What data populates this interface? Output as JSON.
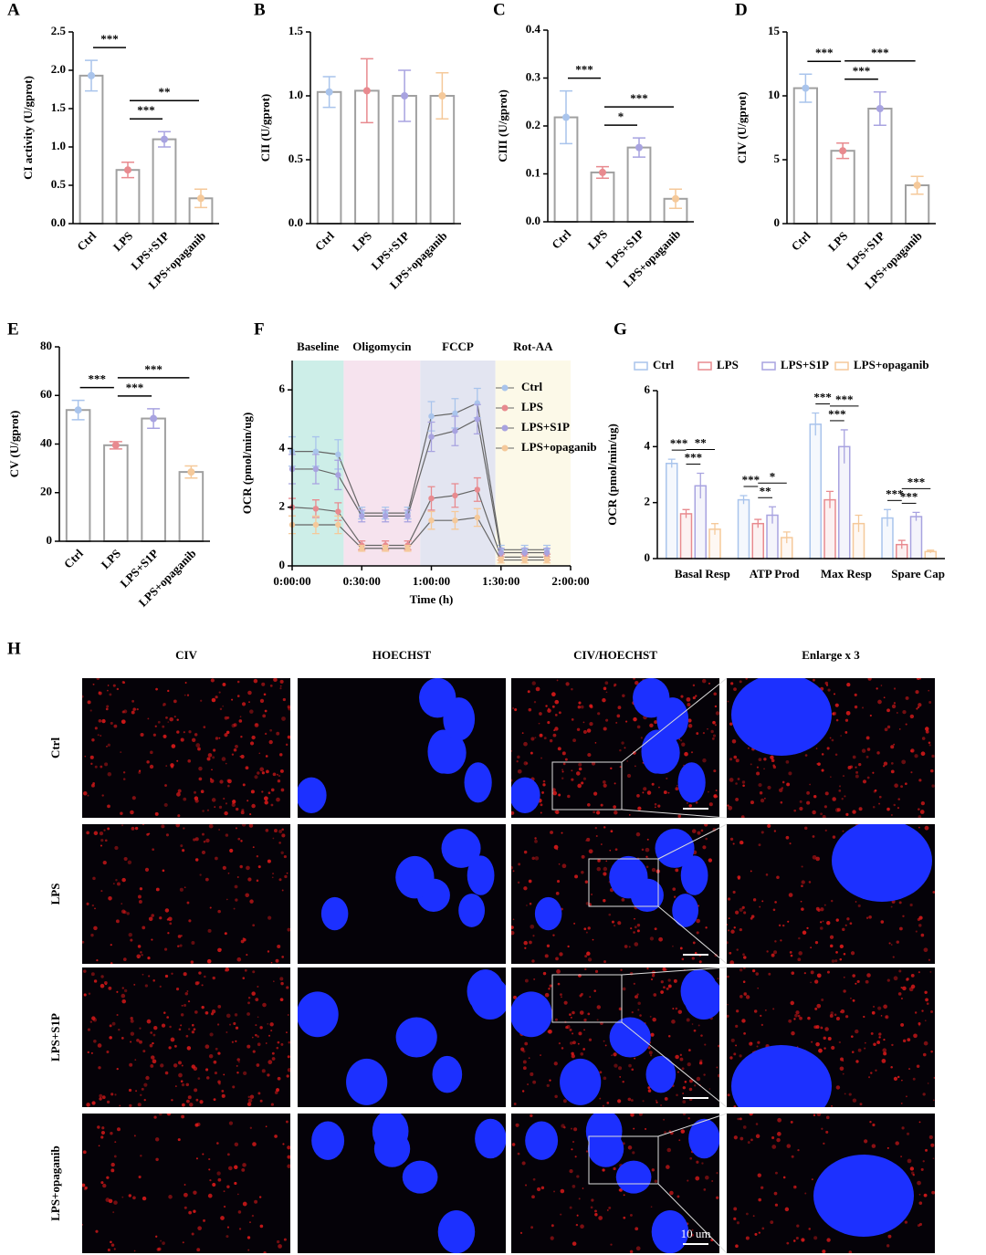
{
  "chart_data": [
    {
      "panel": "A",
      "type": "bar",
      "ylabel": "CI activity (U/gprot)",
      "categories": [
        "Ctrl",
        "LPS",
        "LPS+S1P",
        "LPS+opaganib"
      ],
      "values": [
        1.93,
        0.7,
        1.1,
        0.33
      ],
      "errors": [
        0.2,
        0.1,
        0.1,
        0.12
      ],
      "colors": [
        "#a9c4ec",
        "#e88a8f",
        "#a8a3e0",
        "#f5c99a"
      ],
      "ylim": [
        0,
        2.5
      ],
      "yticks": [
        {
          "value": 0,
          "label": "0.0"
        },
        0.5,
        {
          "value": 1,
          "label": "1.0"
        },
        1.5,
        {
          "value": 2,
          "label": "2.0"
        },
        2.5
      ],
      "annotations": [
        {
          "label": "***",
          "between": [
            "Ctrl",
            "LPS"
          ]
        },
        {
          "label": "***",
          "between": [
            "LPS",
            "LPS+S1P"
          ]
        },
        {
          "label": "**",
          "between": [
            "LPS",
            "LPS+opaganib"
          ]
        }
      ]
    },
    {
      "panel": "B",
      "type": "bar",
      "ylabel": "CII (U/gprot)",
      "categories": [
        "Ctrl",
        "LPS",
        "LPS+S1P",
        "LPS+opaganib"
      ],
      "values": [
        1.03,
        1.04,
        1.0,
        1.0
      ],
      "errors": [
        0.12,
        0.25,
        0.2,
        0.18
      ],
      "colors": [
        "#a9c4ec",
        "#e88a8f",
        "#a8a3e0",
        "#f5c99a"
      ],
      "ylim": [
        0,
        1.5
      ],
      "yticks": [
        {
          "value": 0,
          "label": "0.0"
        },
        0.5,
        {
          "value": 1,
          "label": "1.0"
        },
        1.5
      ],
      "annotations": []
    },
    {
      "panel": "C",
      "type": "bar",
      "ylabel": "CIII (U/gprot)",
      "categories": [
        "Ctrl",
        "LPS",
        "LPS+S1P",
        "LPS+opaganib"
      ],
      "values": [
        0.218,
        0.103,
        0.155,
        0.048
      ],
      "errors": [
        0.055,
        0.012,
        0.02,
        0.02
      ],
      "colors": [
        "#a9c4ec",
        "#e88a8f",
        "#a8a3e0",
        "#f5c99a"
      ],
      "ylim": [
        0,
        0.4
      ],
      "yticks": [
        {
          "value": 0,
          "label": "0.0"
        },
        0.1,
        0.2,
        0.3,
        0.4
      ],
      "annotations": [
        {
          "label": "***",
          "between": [
            "Ctrl",
            "LPS"
          ]
        },
        {
          "label": "*",
          "between": [
            "LPS",
            "LPS+S1P"
          ]
        },
        {
          "label": "***",
          "between": [
            "LPS",
            "LPS+opaganib"
          ]
        }
      ]
    },
    {
      "panel": "D",
      "type": "bar",
      "ylabel": "CIV (U/gprot)",
      "categories": [
        "Ctrl",
        "LPS",
        "LPS+S1P",
        "LPS+opaganib"
      ],
      "values": [
        10.6,
        5.7,
        9.0,
        3.0
      ],
      "errors": [
        1.1,
        0.6,
        1.3,
        0.7
      ],
      "colors": [
        "#a9c4ec",
        "#e88a8f",
        "#a8a3e0",
        "#f5c99a"
      ],
      "ylim": [
        0,
        15
      ],
      "yticks": [
        0,
        5,
        10,
        15
      ],
      "annotations": [
        {
          "label": "***",
          "between": [
            "Ctrl",
            "LPS"
          ]
        },
        {
          "label": "***",
          "between": [
            "LPS",
            "LPS+S1P"
          ]
        },
        {
          "label": "***",
          "between": [
            "LPS",
            "LPS+opaganib"
          ]
        }
      ]
    },
    {
      "panel": "E",
      "type": "bar",
      "ylabel": "CV (U/gprot)",
      "categories": [
        "Ctrl",
        "LPS",
        "LPS+S1P",
        "LPS+opaganib"
      ],
      "values": [
        54,
        39.5,
        50.5,
        28.5
      ],
      "errors": [
        4,
        1.5,
        4,
        2.5
      ],
      "colors": [
        "#a9c4ec",
        "#e88a8f",
        "#a8a3e0",
        "#f5c99a"
      ],
      "ylim": [
        0,
        80
      ],
      "yticks": [
        0,
        20,
        40,
        60,
        80
      ],
      "annotations": [
        {
          "label": "***",
          "between": [
            "Ctrl",
            "LPS"
          ]
        },
        {
          "label": "***",
          "between": [
            "LPS",
            "LPS+S1P"
          ]
        },
        {
          "label": "***",
          "between": [
            "LPS",
            "LPS+opaganib"
          ]
        }
      ]
    },
    {
      "panel": "F",
      "type": "line",
      "xlabel": "Time (h)",
      "ylabel": "OCR (pmol/min/ug)",
      "x": [
        0,
        0.17,
        0.33,
        0.5,
        0.67,
        0.83,
        1,
        1.17,
        1.33,
        1.5,
        1.67,
        1.83
      ],
      "xlim": [
        0,
        2
      ],
      "xticks": [
        {
          "value": 0,
          "label": "0:00:00"
        },
        {
          "value": 0.5,
          "label": "0:30:00"
        },
        {
          "value": 1,
          "label": "1:00:00"
        },
        {
          "value": 1.5,
          "label": "1:30:00"
        },
        {
          "value": 2,
          "label": "2:00:00"
        }
      ],
      "ylim": [
        0,
        7
      ],
      "yticks": [
        0,
        2,
        4,
        6
      ],
      "regions": [
        {
          "label": "Baseline",
          "start": 0,
          "end": 0.37,
          "color": "#cdeee8"
        },
        {
          "label": "Oligomycin",
          "start": 0.37,
          "end": 0.92,
          "color": "#f6e3ee"
        },
        {
          "label": "FCCP",
          "start": 0.92,
          "end": 1.46,
          "color": "#e3e5f1"
        },
        {
          "label": "Rot-AA",
          "start": 1.46,
          "end": 2,
          "color": "#fcf9e8"
        }
      ],
      "series": [
        {
          "name": "Ctrl",
          "color": "#a9c4ec",
          "values": [
            3.9,
            3.9,
            3.8,
            1.8,
            1.8,
            1.8,
            5.1,
            5.2,
            5.55,
            0.55,
            0.55,
            0.55
          ],
          "errors": [
            0.5,
            0.5,
            0.5,
            0.2,
            0.2,
            0.2,
            0.5,
            0.5,
            0.5,
            0.15,
            0.15,
            0.15
          ]
        },
        {
          "name": "LPS",
          "color": "#e88a8f",
          "values": [
            2.0,
            1.95,
            1.85,
            0.7,
            0.7,
            0.7,
            2.3,
            2.4,
            2.6,
            0.3,
            0.3,
            0.3
          ],
          "errors": [
            0.3,
            0.3,
            0.3,
            0.15,
            0.15,
            0.15,
            0.4,
            0.4,
            0.4,
            0.1,
            0.1,
            0.1
          ]
        },
        {
          "name": "LPS+S1P",
          "color": "#a8a3e0",
          "values": [
            3.3,
            3.3,
            3.1,
            1.7,
            1.7,
            1.7,
            4.4,
            4.6,
            5.0,
            0.45,
            0.45,
            0.45
          ],
          "errors": [
            0.5,
            0.5,
            0.5,
            0.2,
            0.2,
            0.2,
            0.5,
            0.5,
            0.5,
            0.15,
            0.15,
            0.15
          ]
        },
        {
          "name": "LPS+opaganib",
          "color": "#f5c99a",
          "values": [
            1.4,
            1.4,
            1.4,
            0.6,
            0.6,
            0.6,
            1.55,
            1.55,
            1.65,
            0.2,
            0.2,
            0.2
          ],
          "errors": [
            0.3,
            0.3,
            0.3,
            0.1,
            0.1,
            0.1,
            0.3,
            0.3,
            0.3,
            0.1,
            0.1,
            0.1
          ]
        }
      ]
    },
    {
      "panel": "G",
      "type": "grouped_bar",
      "ylabel": "OCR (pmol/min/ug)",
      "categories": [
        "Basal Resp",
        "ATP Prod",
        "Max Resp",
        "Spare Cap"
      ],
      "ylim": [
        0,
        6
      ],
      "yticks": [
        0,
        2,
        4,
        6
      ],
      "series": [
        {
          "name": "Ctrl",
          "color": "#a9c4ec",
          "values": [
            3.4,
            2.1,
            4.8,
            1.45
          ],
          "errors": [
            0.15,
            0.15,
            0.4,
            0.3
          ]
        },
        {
          "name": "LPS",
          "color": "#e88a8f",
          "values": [
            1.6,
            1.25,
            2.1,
            0.5
          ],
          "errors": [
            0.15,
            0.15,
            0.3,
            0.15
          ]
        },
        {
          "name": "LPS+S1P",
          "color": "#a8a3e0",
          "values": [
            2.6,
            1.55,
            4.0,
            1.5
          ],
          "errors": [
            0.45,
            0.3,
            0.6,
            0.15
          ]
        },
        {
          "name": "LPS+opaganib",
          "color": "#f5c99a",
          "values": [
            1.05,
            0.75,
            1.25,
            0.25
          ],
          "errors": [
            0.2,
            0.2,
            0.3,
            0.05
          ]
        }
      ],
      "annotations": [
        {
          "group": "Basal Resp",
          "label": "***",
          "between": [
            "Ctrl",
            "LPS"
          ]
        },
        {
          "group": "Basal Resp",
          "label": "***",
          "between": [
            "LPS",
            "LPS+S1P"
          ]
        },
        {
          "group": "Basal Resp",
          "label": "**",
          "between": [
            "LPS",
            "LPS+opaganib"
          ]
        },
        {
          "group": "ATP Prod",
          "label": "***",
          "between": [
            "Ctrl",
            "LPS"
          ]
        },
        {
          "group": "ATP Prod",
          "label": "**",
          "between": [
            "LPS",
            "LPS+S1P"
          ]
        },
        {
          "group": "ATP Prod",
          "label": "*",
          "between": [
            "LPS",
            "LPS+opaganib"
          ]
        },
        {
          "group": "Max Resp",
          "label": "***",
          "between": [
            "Ctrl",
            "LPS"
          ]
        },
        {
          "group": "Max Resp",
          "label": "***",
          "between": [
            "LPS",
            "LPS+S1P"
          ]
        },
        {
          "group": "Max Resp",
          "label": "***",
          "between": [
            "LPS",
            "LPS+opaganib"
          ]
        },
        {
          "group": "Spare Cap",
          "label": "***",
          "between": [
            "Ctrl",
            "LPS"
          ]
        },
        {
          "group": "Spare Cap",
          "label": "***",
          "between": [
            "LPS",
            "LPS+S1P"
          ]
        },
        {
          "group": "Spare Cap",
          "label": "***",
          "between": [
            "LPS",
            "LPS+opaganib"
          ]
        }
      ]
    }
  ],
  "panel_h": {
    "panel": "H",
    "columns": [
      "CIV",
      "HOECHST",
      "CIV/HOECHST",
      "Enlarge x 3"
    ],
    "rows": [
      "Ctrl",
      "LPS",
      "LPS+S1P",
      "LPS+opaganib"
    ],
    "scale_bar": "10 um"
  }
}
